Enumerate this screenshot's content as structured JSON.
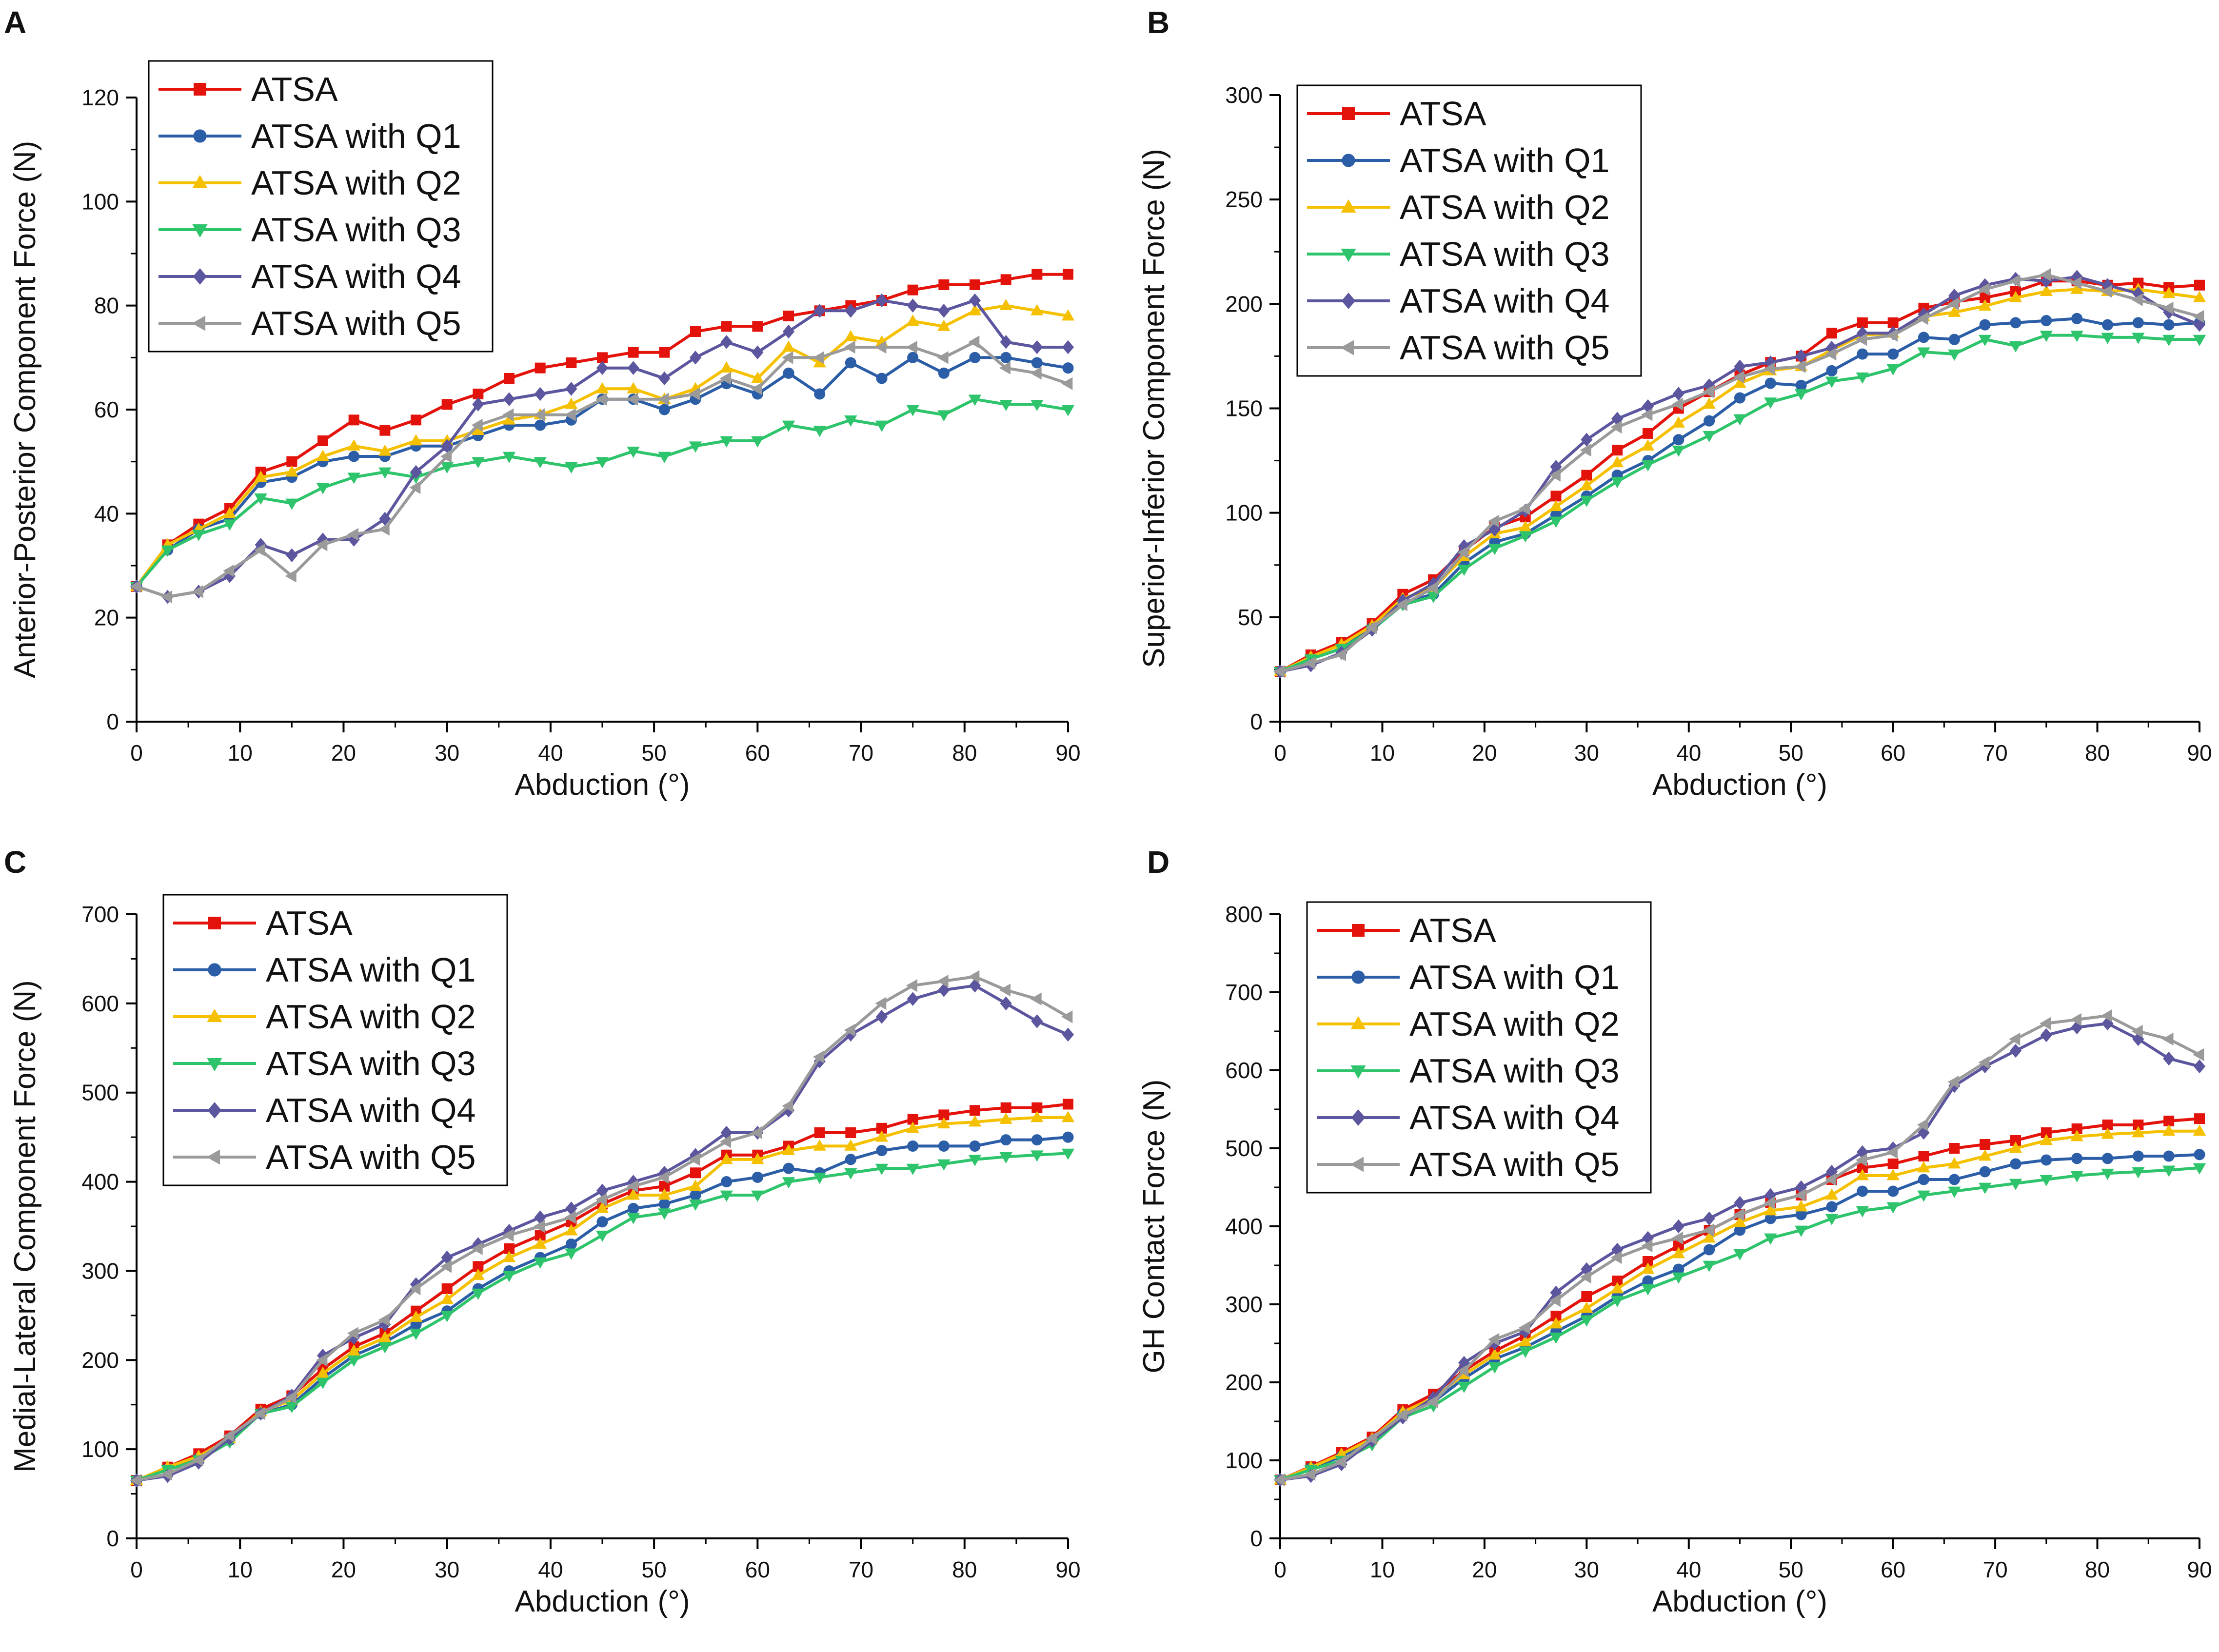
{
  "figure": {
    "x_axis_label": "Abduction (°)"
  },
  "series_styles": [
    {
      "name": "ATSA",
      "color": "#e3120b",
      "marker": "square"
    },
    {
      "name": "ATSA with Q1",
      "color": "#2b5ea7",
      "marker": "circle"
    },
    {
      "name": "ATSA with Q2",
      "color": "#f5c000",
      "marker": "triangle-up"
    },
    {
      "name": "ATSA with Q3",
      "color": "#2ec46b",
      "marker": "triangle-down"
    },
    {
      "name": "ATSA with Q4",
      "color": "#5b569e",
      "marker": "diamond"
    },
    {
      "name": "ATSA with Q5",
      "color": "#9a9a9a",
      "marker": "triangle-left"
    }
  ],
  "chart_data": [
    {
      "panel": "A",
      "type": "line",
      "xlabel": "Abduction (°)",
      "ylabel": "Anterior-Posterior Component Force (N)",
      "xlim": [
        0,
        90
      ],
      "ylim": [
        0,
        120
      ],
      "xticks": [
        0,
        10,
        20,
        30,
        40,
        50,
        60,
        70,
        80,
        90
      ],
      "yticks": [
        0,
        20,
        40,
        60,
        80,
        100,
        120
      ],
      "legend": "top-left",
      "x": [
        0,
        3,
        6,
        9,
        12,
        15,
        18,
        21,
        24,
        27,
        30,
        33,
        36,
        39,
        42,
        45,
        48,
        51,
        54,
        57,
        60,
        63,
        66,
        69,
        72,
        75,
        78,
        81,
        84,
        87,
        90
      ],
      "series": [
        {
          "name": "ATSA",
          "values": [
            26,
            34,
            38,
            41,
            48,
            50,
            54,
            58,
            56,
            58,
            61,
            63,
            66,
            68,
            69,
            70,
            71,
            71,
            75,
            76,
            76,
            78,
            79,
            80,
            81,
            83,
            84,
            84,
            85,
            86,
            86
          ]
        },
        {
          "name": "ATSA with Q1",
          "values": [
            26,
            33,
            37,
            39,
            46,
            47,
            50,
            51,
            51,
            53,
            53,
            55,
            57,
            57,
            58,
            62,
            62,
            60,
            62,
            65,
            63,
            67,
            63,
            69,
            66,
            70,
            67,
            70,
            70,
            69,
            68
          ]
        },
        {
          "name": "ATSA with Q2",
          "values": [
            26,
            34,
            37,
            40,
            47,
            48,
            51,
            53,
            52,
            54,
            54,
            56,
            58,
            59,
            61,
            64,
            64,
            62,
            64,
            68,
            66,
            72,
            69,
            74,
            73,
            77,
            76,
            79,
            80,
            79,
            78
          ]
        },
        {
          "name": "ATSA with Q3",
          "values": [
            26,
            33,
            36,
            38,
            43,
            42,
            45,
            47,
            48,
            47,
            49,
            50,
            51,
            50,
            49,
            50,
            52,
            51,
            53,
            54,
            54,
            57,
            56,
            58,
            57,
            60,
            59,
            62,
            61,
            61,
            60
          ]
        },
        {
          "name": "ATSA with Q4",
          "values": [
            26,
            24,
            25,
            28,
            34,
            32,
            35,
            35,
            39,
            48,
            53,
            61,
            62,
            63,
            64,
            68,
            68,
            66,
            70,
            73,
            71,
            75,
            79,
            79,
            81,
            80,
            79,
            81,
            73,
            72,
            72
          ]
        },
        {
          "name": "ATSA with Q5",
          "values": [
            26,
            24,
            25,
            29,
            33,
            28,
            34,
            36,
            37,
            45,
            51,
            57,
            59,
            59,
            59,
            62,
            62,
            62,
            63,
            66,
            64,
            70,
            70,
            72,
            72,
            72,
            70,
            73,
            68,
            67,
            65
          ]
        }
      ]
    },
    {
      "panel": "B",
      "type": "line",
      "xlabel": "Abduction (°)",
      "ylabel": "Superior-Inferior Component Force (N)",
      "xlim": [
        0,
        90
      ],
      "ylim": [
        0,
        300
      ],
      "xticks": [
        0,
        10,
        20,
        30,
        40,
        50,
        60,
        70,
        80,
        90
      ],
      "yticks": [
        0,
        50,
        100,
        150,
        200,
        250,
        300
      ],
      "legend": "top-left",
      "x": [
        0,
        3,
        6,
        9,
        12,
        15,
        18,
        21,
        24,
        27,
        30,
        33,
        36,
        39,
        42,
        45,
        48,
        51,
        54,
        57,
        60,
        63,
        66,
        69,
        72,
        75,
        78,
        81,
        84,
        87,
        90
      ],
      "series": [
        {
          "name": "ATSA",
          "values": [
            24,
            32,
            38,
            47,
            61,
            68,
            82,
            93,
            98,
            108,
            118,
            130,
            138,
            150,
            158,
            166,
            172,
            175,
            186,
            191,
            191,
            198,
            201,
            203,
            206,
            211,
            211,
            209,
            210,
            208,
            209
          ]
        },
        {
          "name": "ATSA with Q1",
          "values": [
            24,
            30,
            35,
            45,
            57,
            61,
            76,
            86,
            90,
            99,
            108,
            118,
            125,
            135,
            144,
            155,
            162,
            161,
            168,
            176,
            176,
            184,
            183,
            190,
            191,
            192,
            193,
            190,
            191,
            190,
            191
          ]
        },
        {
          "name": "ATSA with Q2",
          "values": [
            24,
            31,
            37,
            46,
            59,
            64,
            79,
            90,
            93,
            103,
            113,
            124,
            132,
            143,
            152,
            162,
            168,
            170,
            178,
            185,
            186,
            194,
            196,
            199,
            203,
            206,
            207,
            206,
            207,
            205,
            203
          ]
        },
        {
          "name": "ATSA with Q3",
          "values": [
            24,
            30,
            35,
            44,
            56,
            60,
            73,
            83,
            89,
            96,
            106,
            115,
            123,
            130,
            137,
            145,
            153,
            157,
            163,
            165,
            169,
            177,
            176,
            183,
            180,
            185,
            185,
            184,
            184,
            183,
            183
          ]
        },
        {
          "name": "ATSA with Q4",
          "values": [
            24,
            27,
            33,
            44,
            58,
            66,
            84,
            92,
            101,
            122,
            135,
            145,
            151,
            157,
            161,
            170,
            172,
            175,
            179,
            186,
            186,
            195,
            204,
            209,
            212,
            211,
            213,
            209,
            205,
            196,
            190
          ]
        },
        {
          "name": "ATSA with Q5",
          "values": [
            24,
            28,
            32,
            45,
            56,
            64,
            81,
            96,
            102,
            118,
            130,
            141,
            147,
            152,
            158,
            165,
            169,
            170,
            176,
            183,
            185,
            193,
            200,
            207,
            211,
            214,
            210,
            206,
            202,
            198,
            194
          ]
        }
      ]
    },
    {
      "panel": "C",
      "type": "line",
      "xlabel": "Abduction (°)",
      "ylabel": "Medial-Lateral Component Force (N)",
      "xlim": [
        0,
        90
      ],
      "ylim": [
        0,
        700
      ],
      "xticks": [
        0,
        10,
        20,
        30,
        40,
        50,
        60,
        70,
        80,
        90
      ],
      "yticks": [
        0,
        100,
        200,
        300,
        400,
        500,
        600,
        700
      ],
      "legend": "top-left",
      "x": [
        0,
        3,
        6,
        9,
        12,
        15,
        18,
        21,
        24,
        27,
        30,
        33,
        36,
        39,
        42,
        45,
        48,
        51,
        54,
        57,
        60,
        63,
        66,
        69,
        72,
        75,
        78,
        81,
        84,
        87,
        90
      ],
      "series": [
        {
          "name": "ATSA",
          "values": [
            65,
            80,
            95,
            115,
            145,
            160,
            190,
            215,
            230,
            255,
            280,
            305,
            325,
            340,
            355,
            375,
            390,
            395,
            410,
            430,
            430,
            440,
            455,
            455,
            460,
            470,
            475,
            480,
            483,
            483,
            487
          ]
        },
        {
          "name": "ATSA with Q1",
          "values": [
            65,
            78,
            90,
            110,
            140,
            150,
            180,
            205,
            220,
            240,
            255,
            280,
            300,
            315,
            330,
            355,
            370,
            375,
            385,
            400,
            405,
            415,
            410,
            425,
            435,
            440,
            440,
            440,
            447,
            447,
            450
          ]
        },
        {
          "name": "ATSA with Q2",
          "values": [
            65,
            80,
            92,
            112,
            142,
            155,
            185,
            210,
            225,
            248,
            268,
            295,
            315,
            330,
            345,
            370,
            385,
            385,
            395,
            425,
            425,
            435,
            440,
            440,
            450,
            460,
            465,
            467,
            470,
            472,
            472
          ]
        },
        {
          "name": "ATSA with Q3",
          "values": [
            65,
            77,
            88,
            108,
            140,
            148,
            175,
            200,
            215,
            230,
            250,
            275,
            295,
            310,
            320,
            340,
            360,
            365,
            375,
            385,
            385,
            400,
            405,
            410,
            415,
            415,
            420,
            425,
            428,
            430,
            432
          ]
        },
        {
          "name": "ATSA with Q4",
          "values": [
            65,
            70,
            85,
            112,
            140,
            160,
            205,
            225,
            240,
            285,
            315,
            330,
            345,
            360,
            370,
            390,
            400,
            410,
            430,
            455,
            455,
            480,
            535,
            565,
            585,
            605,
            615,
            620,
            600,
            580,
            565
          ]
        },
        {
          "name": "ATSA with Q5",
          "values": [
            65,
            72,
            88,
            115,
            140,
            158,
            200,
            230,
            245,
            280,
            305,
            325,
            340,
            350,
            360,
            380,
            395,
            405,
            425,
            445,
            455,
            485,
            540,
            570,
            600,
            620,
            625,
            630,
            615,
            605,
            585
          ]
        }
      ]
    },
    {
      "panel": "D",
      "type": "line",
      "xlabel": "Abduction (°)",
      "ylabel": "GH Contact Force (N)",
      "xlim": [
        0,
        90
      ],
      "ylim": [
        0,
        800
      ],
      "xticks": [
        0,
        10,
        20,
        30,
        40,
        50,
        60,
        70,
        80,
        90
      ],
      "yticks": [
        0,
        100,
        200,
        300,
        400,
        500,
        600,
        700,
        800
      ],
      "legend": "top-left",
      "x": [
        0,
        3,
        6,
        9,
        12,
        15,
        18,
        21,
        24,
        27,
        30,
        33,
        36,
        39,
        42,
        45,
        48,
        51,
        54,
        57,
        60,
        63,
        66,
        69,
        72,
        75,
        78,
        81,
        84,
        87,
        90
      ],
      "series": [
        {
          "name": "ATSA",
          "values": [
            75,
            92,
            110,
            130,
            165,
            185,
            215,
            240,
            260,
            285,
            310,
            330,
            355,
            375,
            395,
            415,
            430,
            440,
            460,
            475,
            480,
            490,
            500,
            505,
            510,
            520,
            525,
            530,
            530,
            535,
            538
          ]
        },
        {
          "name": "ATSA with Q1",
          "values": [
            75,
            90,
            105,
            125,
            160,
            175,
            205,
            230,
            245,
            265,
            285,
            310,
            330,
            345,
            370,
            395,
            410,
            415,
            425,
            445,
            445,
            460,
            460,
            470,
            480,
            485,
            487,
            487,
            490,
            490,
            492
          ]
        },
        {
          "name": "ATSA with Q2",
          "values": [
            75,
            91,
            108,
            128,
            162,
            180,
            210,
            235,
            252,
            275,
            295,
            320,
            345,
            365,
            385,
            405,
            420,
            425,
            440,
            465,
            465,
            475,
            480,
            490,
            500,
            510,
            515,
            518,
            520,
            522,
            522
          ]
        },
        {
          "name": "ATSA with Q3",
          "values": [
            75,
            88,
            100,
            120,
            155,
            170,
            195,
            220,
            240,
            258,
            280,
            305,
            320,
            335,
            350,
            365,
            385,
            395,
            410,
            420,
            425,
            440,
            445,
            450,
            455,
            460,
            465,
            468,
            470,
            472,
            475
          ]
        },
        {
          "name": "ATSA with Q4",
          "values": [
            75,
            80,
            95,
            125,
            155,
            180,
            225,
            250,
            265,
            315,
            345,
            370,
            385,
            400,
            410,
            430,
            440,
            450,
            470,
            495,
            500,
            520,
            580,
            605,
            625,
            645,
            655,
            660,
            640,
            615,
            605
          ]
        },
        {
          "name": "ATSA with Q5",
          "values": [
            75,
            82,
            98,
            128,
            158,
            175,
            215,
            255,
            270,
            305,
            335,
            360,
            375,
            385,
            395,
            415,
            430,
            440,
            460,
            485,
            495,
            530,
            585,
            610,
            640,
            660,
            665,
            670,
            650,
            640,
            620
          ]
        }
      ]
    }
  ]
}
